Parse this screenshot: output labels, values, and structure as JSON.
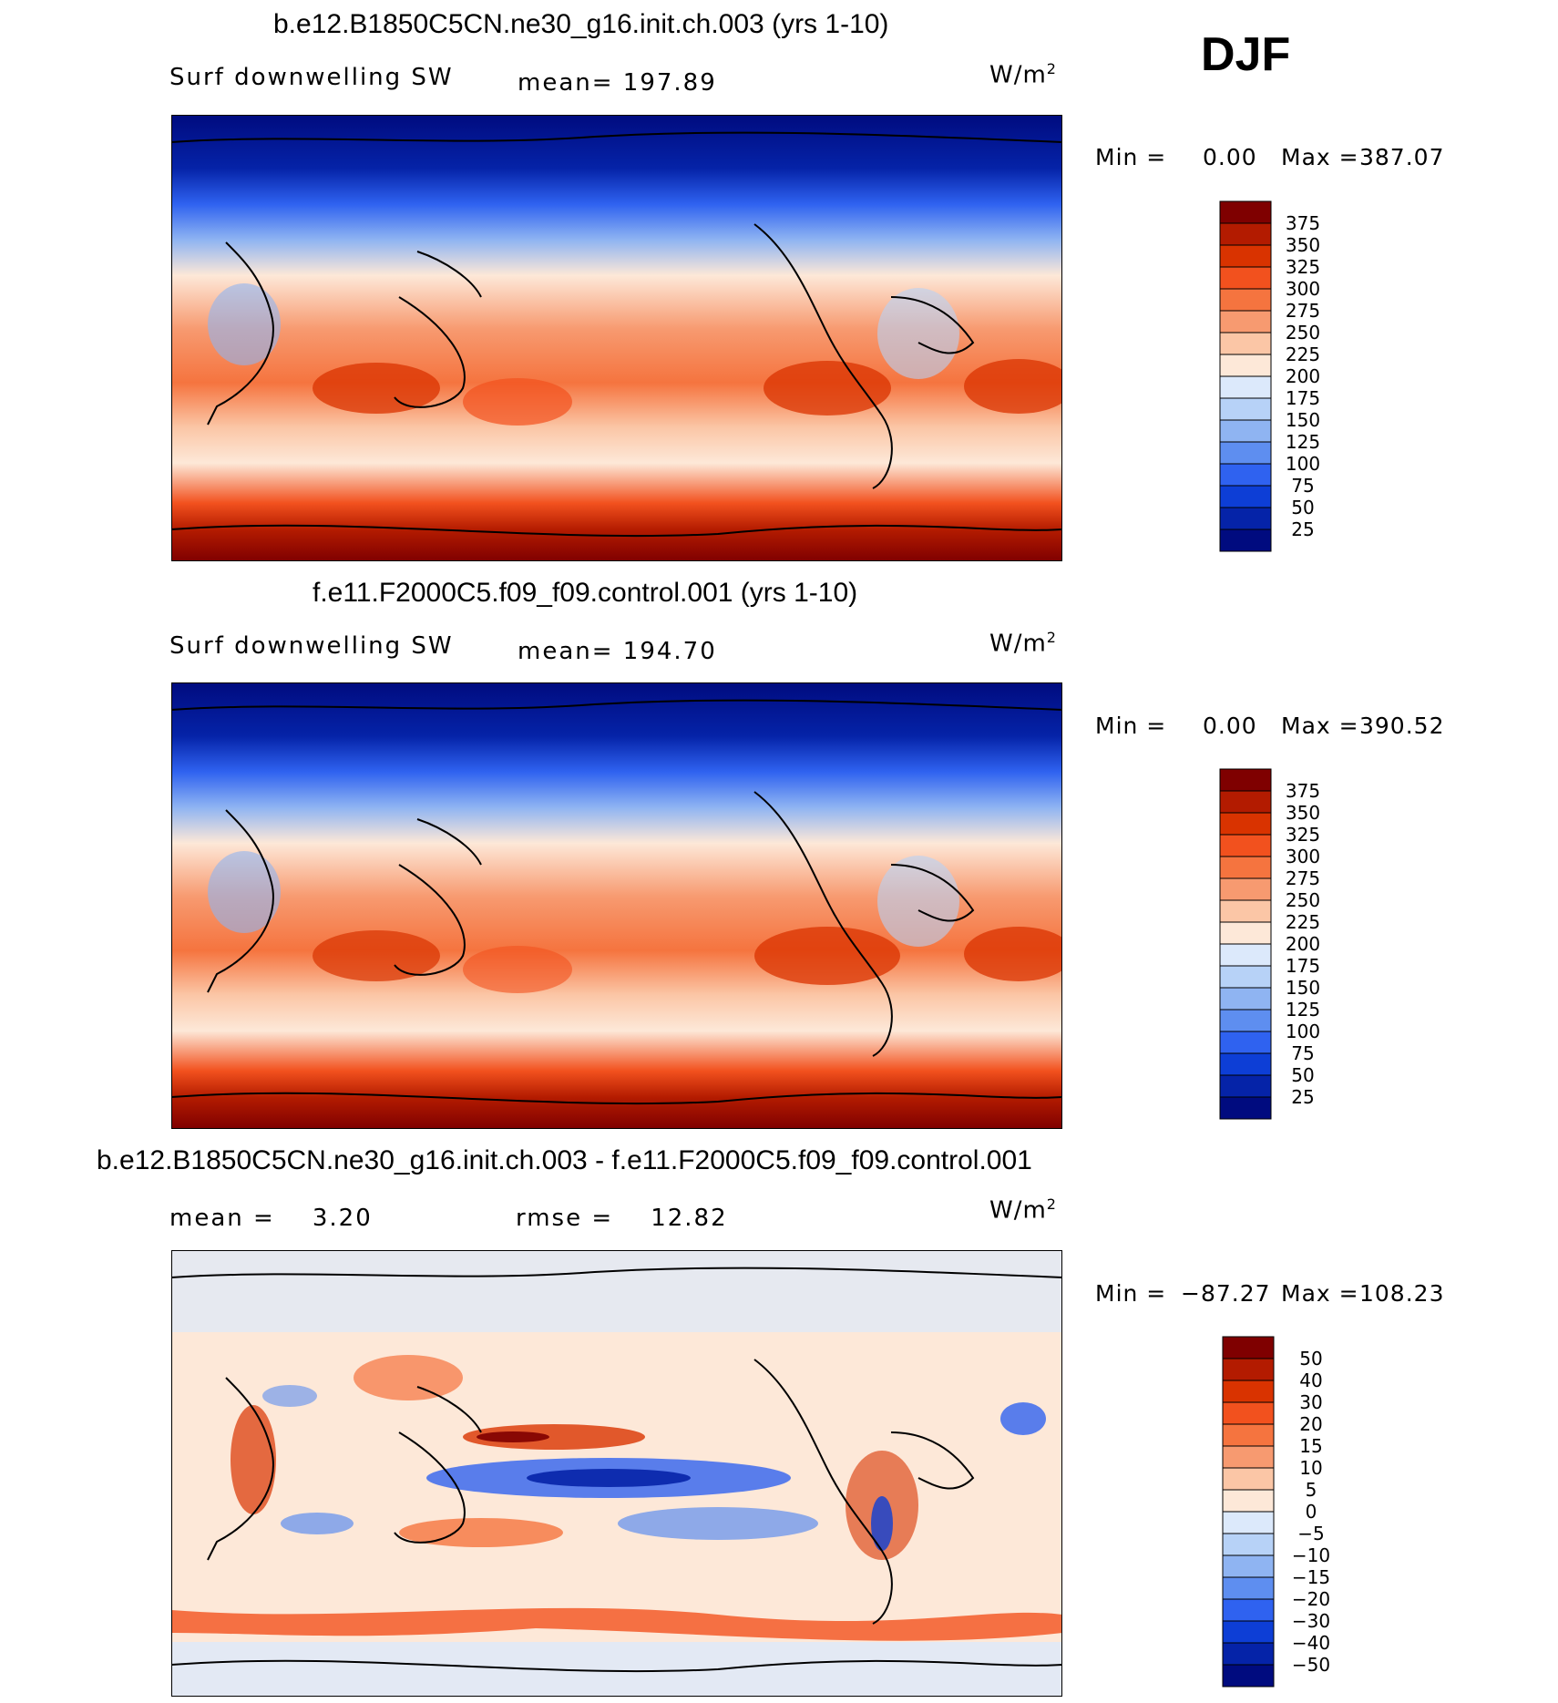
{
  "season": "DJF",
  "units_base": "W/m",
  "units_exp": "2",
  "panels": [
    {
      "title": "b.e12.B1850C5CN.ne30_g16.init.ch.003 (yrs 1-10)",
      "left_label": "Surf downwelling SW",
      "mean_label": "mean= 197.89",
      "min_label": "Min =",
      "min_value": "0.00",
      "max_label": "Max =",
      "max_value": "387.07",
      "colorbar_levels": [
        "375",
        "350",
        "325",
        "300",
        "275",
        "250",
        "225",
        "200",
        "175",
        "150",
        "125",
        "100",
        "75",
        "50",
        "25"
      ]
    },
    {
      "title": "f.e11.F2000C5.f09_f09.control.001 (yrs 1-10)",
      "left_label": "Surf downwelling SW",
      "mean_label": "mean= 194.70",
      "min_label": "Min =",
      "min_value": "0.00",
      "max_label": "Max =",
      "max_value": "390.52",
      "colorbar_levels": [
        "375",
        "350",
        "325",
        "300",
        "275",
        "250",
        "225",
        "200",
        "175",
        "150",
        "125",
        "100",
        "75",
        "50",
        "25"
      ]
    },
    {
      "title": "b.e12.B1850C5CN.ne30_g16.init.ch.003 - f.e11.F2000C5.f09_f09.control.001",
      "left_label": "mean =    3.20",
      "mean_label": "rmse =    12.82",
      "min_label": "Min =",
      "min_value": "−87.27",
      "max_label": "Max =",
      "max_value": "108.23",
      "colorbar_levels": [
        "50",
        "40",
        "30",
        "20",
        "15",
        "10",
        "5",
        "0",
        "−5",
        "−10",
        "−15",
        "−20",
        "−30",
        "−40",
        "−50"
      ]
    }
  ],
  "colors": {
    "abs_scale": [
      "#7f0000",
      "#b31b00",
      "#d93300",
      "#f2511e",
      "#f5743f",
      "#f79a70",
      "#fbc6a6",
      "#fde8d8",
      "#dce9fb",
      "#b7d2f7",
      "#8fb4f2",
      "#5e8ef0",
      "#2f62f0",
      "#0d3ed6",
      "#0523a8",
      "#000b7f"
    ],
    "diff_scale": [
      "#7f0000",
      "#b31b00",
      "#d93300",
      "#f2511e",
      "#f5743f",
      "#f79a70",
      "#fbc6a6",
      "#fde8d8",
      "#dce9fb",
      "#b7d2f7",
      "#8fb4f2",
      "#5e8ef0",
      "#2f62f0",
      "#0d3ed6",
      "#0523a8",
      "#000b7f"
    ]
  }
}
